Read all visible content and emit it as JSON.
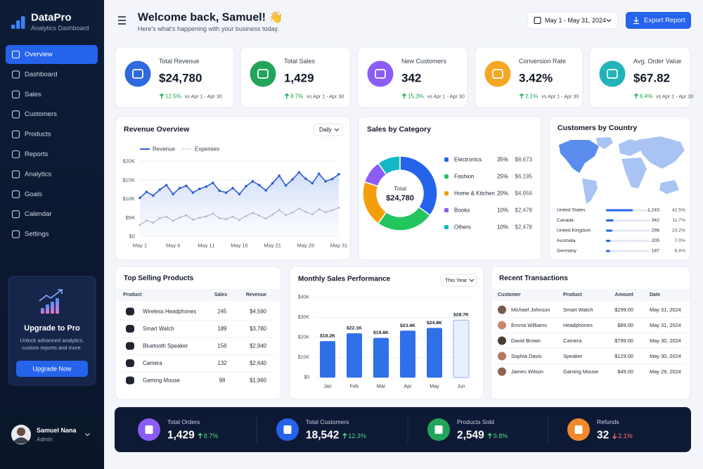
{
  "brand": {
    "name": "DataPro",
    "subtitle": "Analytics Dashboard"
  },
  "nav": [
    "Overview",
    "Dashboard",
    "Sales",
    "Customers",
    "Products",
    "Reports",
    "Analytics",
    "Goals",
    "Calendar",
    "Settings"
  ],
  "upgrade": {
    "title": "Upgrade to Pro",
    "text": [
      "Unlock advanced analytics,",
      "custom reports and more."
    ],
    "button": "Upgrade Now"
  },
  "user": {
    "name": "Samuel Nana",
    "role": "Admin"
  },
  "header": {
    "title": "Welcome back, Samuel! 👋",
    "subtitle": "Here's what's happening with your business today.",
    "date_range": "May 1 - May 31, 2024",
    "export": "Export Report"
  },
  "kpis": [
    {
      "label": "Total Revenue",
      "value": "$24,780",
      "change": "12.5%",
      "compare": "vs Apr 1 - Apr 30",
      "color": "#2d6ae0"
    },
    {
      "label": "Total Sales",
      "value": "1,429",
      "change": "8.7%",
      "compare": "vs Apr 1 - Apr 30",
      "color": "#22a55a"
    },
    {
      "label": "New Customers",
      "value": "342",
      "change": "15.3%",
      "compare": "vs Apr 1 - Apr 30",
      "color": "#8b5cf6"
    },
    {
      "label": "Conversion Rate",
      "value": "3.42%",
      "change": "2.1%",
      "compare": "vs Apr 1 - Apr 30",
      "color": "#f5a623"
    },
    {
      "label": "Avg. Order Value",
      "value": "$67.82",
      "change": "6.4%",
      "compare": "vs Apr 1 - Apr 30",
      "color": "#22b3b8"
    }
  ],
  "revenue_overview": {
    "title": "Revenue Overview",
    "filter": "Daily",
    "categories": [
      "May 1",
      null,
      null,
      null,
      null,
      "May 6",
      null,
      null,
      null,
      null,
      "May 11",
      null,
      null,
      null,
      null,
      "May 16",
      null,
      null,
      null,
      null,
      "May 21",
      null,
      null,
      null,
      null,
      "May 26",
      null,
      null,
      null,
      null,
      "May 31"
    ],
    "series": [
      {
        "name": "Revenue",
        "color": "#2f5fd0",
        "values": [
          10200,
          11800,
          10800,
          12400,
          13600,
          11200,
          12800,
          13400,
          11600,
          12600,
          13200,
          14200,
          12100,
          11600,
          12800,
          11200,
          13300,
          14600,
          13600,
          12200,
          14100,
          16100,
          13500,
          15100,
          17000,
          15300,
          14100,
          16600,
          14600,
          15200,
          16500
        ]
      },
      {
        "name": "Expenses",
        "color": "#b0b8c6",
        "values": [
          3000,
          4200,
          3600,
          4800,
          5200,
          4100,
          5000,
          5600,
          4400,
          4900,
          5300,
          6000,
          4800,
          4500,
          5200,
          4300,
          5400,
          6200,
          5500,
          4700,
          5800,
          7000,
          5600,
          6300,
          7400,
          6500,
          5800,
          7200,
          6400,
          6900,
          7600
        ]
      }
    ],
    "ylim": [
      0,
      20000
    ],
    "yticks": [
      {
        "value": 0,
        "label": "$0"
      },
      {
        "value": 5000,
        "label": "$5K"
      },
      {
        "value": 10000,
        "label": "$10K"
      },
      {
        "value": 15000,
        "label": "$15K"
      },
      {
        "value": 20000,
        "label": "$20K"
      }
    ]
  },
  "sales_by_category": {
    "title": "Sales by Category",
    "center_label": "Total",
    "total": "$24,780",
    "categories": [
      "Electronics",
      "Fashion",
      "Home & Kitchen",
      "Books",
      "Others"
    ],
    "values": [
      35,
      25,
      20,
      10,
      10
    ],
    "value_labels": [
      "35%",
      "25%",
      "20%",
      "10%",
      "10%"
    ],
    "amounts": [
      "$8,673",
      "$6,195",
      "$4,956",
      "$2,478",
      "$2,478"
    ],
    "colors": [
      "#2563eb",
      "#22c55e",
      "#f59e0b",
      "#8b5cf6",
      "#14b8c4"
    ]
  },
  "customers_by_country": {
    "title": "Customers by Country",
    "countries": [
      "United States",
      "Canada",
      "United Kingdom",
      "Australia",
      "Germany"
    ],
    "counts": [
      "1,243",
      "342",
      "298",
      "205",
      "187"
    ],
    "shares": [
      42.5,
      11.7,
      10.2,
      7.0,
      6.4
    ],
    "share_labels": [
      "42.5%",
      "11.7%",
      "10.2%",
      "7.0%",
      "6.4%"
    ]
  },
  "top_products": {
    "title": "Top Selling Products",
    "columns": [
      "Product",
      "Sales",
      "Revenue"
    ],
    "rows": [
      [
        "Wireless Headphones",
        245,
        "$4,590"
      ],
      [
        "Smart Watch",
        189,
        "$3,780"
      ],
      [
        "Bluetooth Speaker",
        156,
        "$2,940"
      ],
      [
        "Camera",
        132,
        "$2,640"
      ],
      [
        "Gaming Mouse",
        98,
        "$1,960"
      ]
    ]
  },
  "monthly_sales": {
    "title": "Monthly Sales Performance",
    "filter": "This Year",
    "categories": [
      "Jan",
      "Feb",
      "Mar",
      "Apr",
      "May",
      "Jun"
    ],
    "values": [
      18200,
      22100,
      19800,
      23400,
      24800,
      28700
    ],
    "value_labels": [
      "$18.2K",
      "$22.1K",
      "$19.8K",
      "$23.4K",
      "$24.8K",
      "$28.7K"
    ],
    "color": "#2f6fe8",
    "highlighted": "Jun",
    "ylim": [
      0,
      40000
    ],
    "yticks": [
      {
        "value": 0,
        "label": "$0"
      },
      {
        "value": 10000,
        "label": "$10K"
      },
      {
        "value": 20000,
        "label": "$20K"
      },
      {
        "value": 30000,
        "label": "$30K"
      },
      {
        "value": 40000,
        "label": "$40K"
      }
    ]
  },
  "recent_transactions": {
    "title": "Recent Transactions",
    "columns": [
      "Customer",
      "Product",
      "Amount",
      "Date"
    ],
    "rows": [
      [
        "Michael Johnson",
        "Smart Watch",
        "$299.00",
        "May 31, 2024"
      ],
      [
        "Emma Williams",
        "Headphones",
        "$89.00",
        "May 31, 2024"
      ],
      [
        "David Brown",
        "Camera",
        "$799.00",
        "May 30, 2024"
      ],
      [
        "Sophia Davis",
        "Speaker",
        "$129.00",
        "May 30, 2024"
      ],
      [
        "James Wilson",
        "Gaming Mouse",
        "$49.00",
        "May 29, 2024"
      ]
    ]
  },
  "summary": [
    {
      "label": "Total Orders",
      "value": "1,429",
      "change": "8.7%",
      "trend": "up",
      "color": "#8b5cf6"
    },
    {
      "label": "Total Customers",
      "value": "18,542",
      "change": "12.3%",
      "trend": "up",
      "color": "#2563eb"
    },
    {
      "label": "Products Sold",
      "value": "2,549",
      "change": "9.8%",
      "trend": "up",
      "color": "#22a55a"
    },
    {
      "label": "Refunds",
      "value": "32",
      "change": "2.1%",
      "trend": "down",
      "color": "#f0892a"
    }
  ]
}
